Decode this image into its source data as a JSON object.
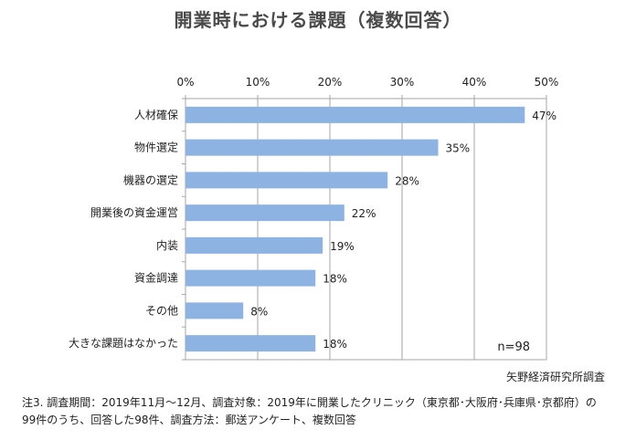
{
  "chart_data": {
    "type": "bar",
    "orientation": "horizontal",
    "title": "開業時における課題（複数回答）",
    "categories": [
      "人材確保",
      "物件選定",
      "機器の選定",
      "開業後の資金運営",
      "内装",
      "資金調達",
      "その他",
      "大きな課題はなかった"
    ],
    "values": [
      47,
      35,
      28,
      22,
      19,
      18,
      8,
      18
    ],
    "value_labels": [
      "47%",
      "35%",
      "28%",
      "22%",
      "19%",
      "18%",
      "8%",
      "18%"
    ],
    "xlim": [
      0,
      50
    ],
    "xticks": [
      0,
      10,
      20,
      30,
      40,
      50
    ],
    "xtick_labels": [
      "0%",
      "10%",
      "20%",
      "30%",
      "40%",
      "50%"
    ],
    "x_axis_position": "top",
    "grid": true,
    "bar_color": "#8db3e2",
    "sample_size": "n=98"
  },
  "source": "矢野経済研究所調査",
  "note": "注3. 調査期間：2019年11月～12月、調査対象：2019年に開業したクリニック（東京都･大阪府･兵庫県･京都府）の99件のうち、回答した98件、調査方法：郵送アンケート、複数回答"
}
